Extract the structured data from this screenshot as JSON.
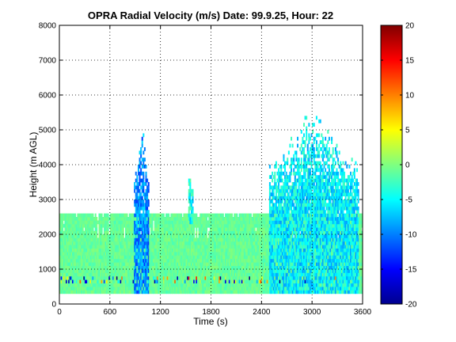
{
  "chart_data": {
    "type": "heatmap",
    "title": "OPRA Radial Velocity (m/s)  Date: 99.9.25, Hour: 22",
    "xlabel": "Time (s)",
    "ylabel": "Height (m AGL)",
    "xlim": [
      0,
      3600
    ],
    "ylim": [
      0,
      8000
    ],
    "x_ticks": [
      0,
      600,
      1200,
      1800,
      2400,
      3000,
      3600
    ],
    "y_ticks": [
      0,
      1000,
      2000,
      3000,
      4000,
      5000,
      6000,
      7000,
      8000
    ],
    "grid": true,
    "colormap": "jet",
    "colorbar": {
      "min": -20,
      "max": 20,
      "ticks": [
        20,
        15,
        10,
        5,
        0,
        -5,
        -10,
        -15,
        -20
      ]
    },
    "background_value_approx": -1,
    "regions": [
      {
        "name": "low-level-layer",
        "x_range": [
          0,
          3600
        ],
        "height_range": [
          300,
          2500
        ],
        "value_approx": -1
      },
      {
        "name": "upper-band",
        "x_range": [
          0,
          3600
        ],
        "height_range": [
          2200,
          2600
        ],
        "value_approx": -1
      },
      {
        "name": "surface-noise-row",
        "x_range": [
          0,
          3600
        ],
        "height_range": [
          600,
          750
        ],
        "value_approx": "mixed -20 to 15"
      },
      {
        "name": "plume-1",
        "x_range": [
          880,
          1060
        ],
        "height_range": [
          300,
          4900
        ],
        "value_approx": -10
      },
      {
        "name": "plume-2",
        "x_range": [
          1520,
          1580
        ],
        "height_range": [
          2300,
          3800
        ],
        "value_approx": -5
      },
      {
        "name": "plume-3",
        "x_range": [
          2480,
          3550
        ],
        "height_range": [
          300,
          5200
        ],
        "value_approx": -6
      }
    ]
  }
}
